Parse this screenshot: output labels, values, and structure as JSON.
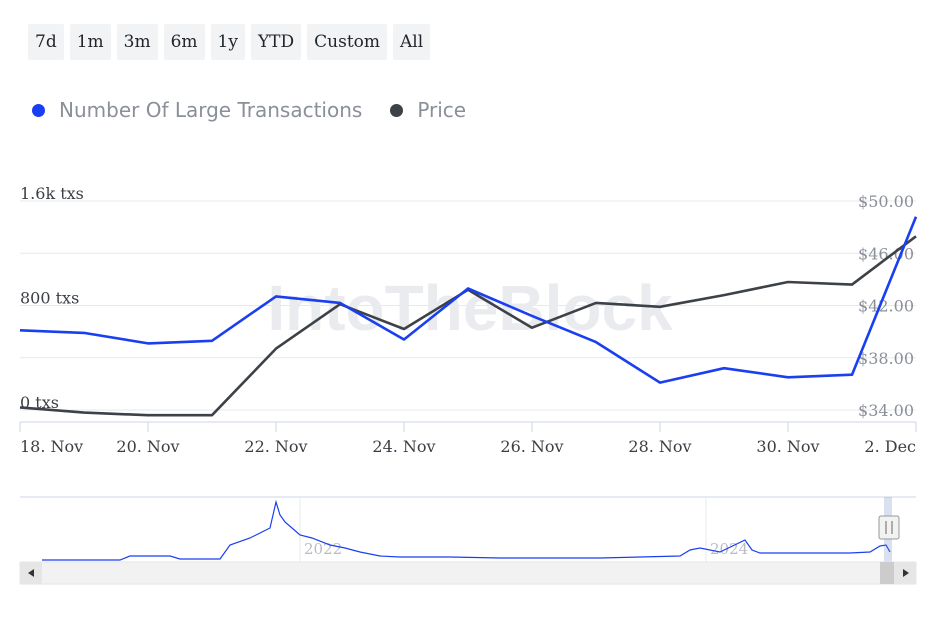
{
  "range_buttons": [
    "7d",
    "1m",
    "3m",
    "6m",
    "1y",
    "YTD",
    "Custom",
    "All"
  ],
  "legend": [
    {
      "label": "Number Of Large Transactions",
      "color": "#1a3ff0"
    },
    {
      "label": "Price",
      "color": "#3d4148"
    }
  ],
  "watermark": "IntoTheBlock",
  "chart_data": {
    "type": "line",
    "x": [
      "2024-11-18",
      "2024-11-19",
      "2024-11-20",
      "2024-11-21",
      "2024-11-22",
      "2024-11-23",
      "2024-11-24",
      "2024-11-25",
      "2024-11-26",
      "2024-11-27",
      "2024-11-28",
      "2024-11-29",
      "2024-11-30",
      "2024-12-01",
      "2024-12-02"
    ],
    "xtick_labels": [
      "18. Nov",
      "20. Nov",
      "22. Nov",
      "24. Nov",
      "26. Nov",
      "28. Nov",
      "30. Nov",
      "2. Dec"
    ],
    "series": [
      {
        "name": "Number Of Large Transactions",
        "axis": "left",
        "color": "#1a3ff0",
        "values": [
          610,
          590,
          510,
          530,
          870,
          820,
          540,
          930,
          720,
          520,
          210,
          320,
          250,
          270,
          1480
        ]
      },
      {
        "name": "Price",
        "axis": "right",
        "color": "#3d4148",
        "values": [
          34.2,
          33.8,
          33.6,
          33.6,
          38.7,
          42.1,
          40.2,
          43.2,
          40.3,
          42.2,
          41.9,
          42.8,
          43.8,
          43.6,
          47.3
        ]
      }
    ],
    "y_left": {
      "ticks": [
        "0 txs",
        "800 txs",
        "1.6k txs"
      ],
      "range": [
        0,
        1600
      ]
    },
    "y_right": {
      "ticks": [
        "$34.00",
        "$38.00",
        "$42.00",
        "$46.00",
        "$50.00"
      ],
      "range": [
        34,
        50
      ]
    },
    "grid": true,
    "navigator": {
      "labels": [
        "2022",
        "2024"
      ]
    }
  }
}
